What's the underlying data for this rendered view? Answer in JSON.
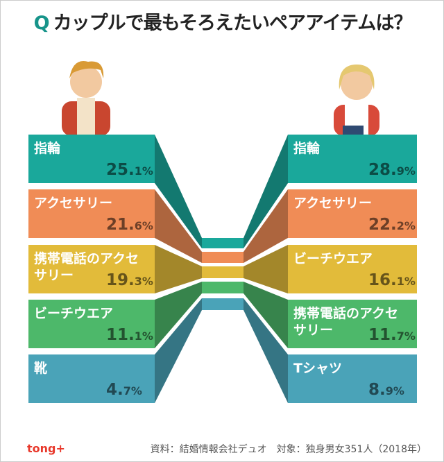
{
  "title_q": "Q",
  "title": "カップルで最もそろえたいペアアイテムは？",
  "logo": "tong+",
  "source": "資料：結婚情報会社デュオ　対象：独身男女351人（2018年）",
  "colors": {
    "teal": "#1aa89b",
    "orange": "#f08c56",
    "yellow": "#e2bb3a",
    "green": "#4db86a",
    "blue": "#4aa3b8"
  },
  "chart_data": {
    "type": "bar",
    "unit": "%",
    "series": [
      {
        "name": "男性",
        "items": [
          {
            "label": "指輪",
            "value": 25.1,
            "color": "#1aa89b"
          },
          {
            "label": "アクセサリー",
            "value": 21.6,
            "color": "#f08c56"
          },
          {
            "label": "携帯電話のアクセサリー",
            "value": 19.3,
            "color": "#e2bb3a"
          },
          {
            "label": "ビーチウエア",
            "value": 11.1,
            "color": "#4db86a"
          },
          {
            "label": "靴",
            "value": 4.7,
            "color": "#4aa3b8"
          }
        ]
      },
      {
        "name": "女性",
        "items": [
          {
            "label": "指輪",
            "value": 28.9,
            "color": "#1aa89b"
          },
          {
            "label": "アクセサリー",
            "value": 22.2,
            "color": "#f08c56"
          },
          {
            "label": "ビーチウエア",
            "value": 16.1,
            "color": "#e2bb3a"
          },
          {
            "label": "携帯電話のアクセサリー",
            "value": 11.7,
            "color": "#4db86a"
          },
          {
            "label": "Tシャツ",
            "value": 8.9,
            "color": "#4aa3b8"
          }
        ]
      }
    ]
  }
}
